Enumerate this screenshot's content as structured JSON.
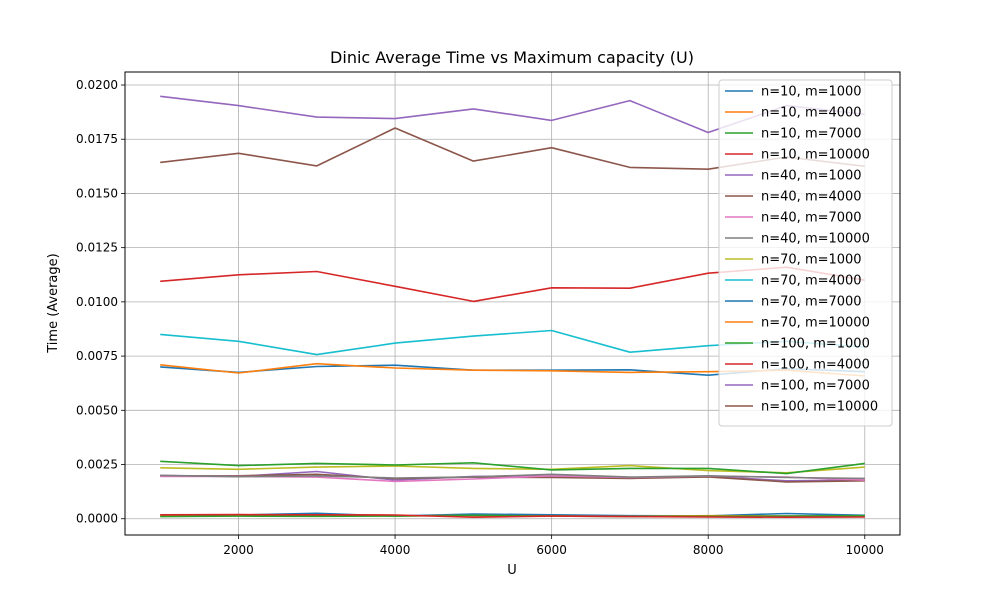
{
  "chart_data": {
    "type": "line",
    "title": "Dinic Average Time vs Maximum capacity (U)",
    "xlabel": "U",
    "ylabel": "Time (Average)",
    "xlim": [
      550,
      10450
    ],
    "ylim": [
      -0.00075,
      0.0206
    ],
    "xticks": [
      2000,
      4000,
      6000,
      8000,
      10000
    ],
    "xtick_labels": [
      "2000",
      "4000",
      "6000",
      "8000",
      "10000"
    ],
    "yticks": [
      0.0,
      0.0025,
      0.005,
      0.0075,
      0.01,
      0.0125,
      0.015,
      0.0175,
      0.02
    ],
    "ytick_labels": [
      "0.0000",
      "0.0025",
      "0.0050",
      "0.0075",
      "0.0100",
      "0.0125",
      "0.0150",
      "0.0175",
      "0.0200"
    ],
    "grid": true,
    "legend_position": "top-right",
    "x": [
      1000,
      2000,
      3000,
      4000,
      5000,
      6000,
      7000,
      8000,
      9000,
      10000
    ],
    "series": [
      {
        "name": "n=10, m=1000",
        "color": "#1f77b4",
        "values": [
          0.00015,
          0.00017,
          0.00025,
          0.00012,
          0.00022,
          0.00018,
          0.00014,
          0.00013,
          0.00024,
          0.00016
        ]
      },
      {
        "name": "n=10, m=4000",
        "color": "#ff7f0e",
        "values": [
          0.00012,
          0.00014,
          0.00016,
          0.00013,
          0.00015,
          0.00012,
          0.00011,
          0.00014,
          0.00012,
          0.00013
        ]
      },
      {
        "name": "n=10, m=7000",
        "color": "#2ca02c",
        "values": [
          0.0001,
          0.00012,
          0.00011,
          0.00012,
          0.00016,
          0.00012,
          0.0001,
          0.00011,
          0.00012,
          0.00014
        ]
      },
      {
        "name": "n=10, m=10000",
        "color": "#d62728",
        "values": [
          0.00018,
          0.00019,
          0.00018,
          0.00017,
          7e-05,
          0.00012,
          0.0001,
          8e-05,
          7e-05,
          8e-05
        ]
      },
      {
        "name": "n=40, m=1000",
        "color": "#9467bd",
        "values": [
          0.002,
          0.00195,
          0.00218,
          0.00178,
          0.00195,
          0.00197,
          0.00188,
          0.00195,
          0.00175,
          0.00178
        ]
      },
      {
        "name": "n=40, m=4000",
        "color": "#8c564b",
        "values": [
          0.00196,
          0.00198,
          0.00205,
          0.00185,
          0.00192,
          0.0019,
          0.00186,
          0.00193,
          0.0017,
          0.00175
        ]
      },
      {
        "name": "n=40, m=7000",
        "color": "#e377c2",
        "values": [
          0.00195,
          0.00195,
          0.00192,
          0.00172,
          0.00183,
          0.00198,
          0.0019,
          0.00197,
          0.00192,
          0.00178
        ]
      },
      {
        "name": "n=40, m=10000",
        "color": "#7f7f7f",
        "values": [
          0.002,
          0.00194,
          0.00198,
          0.00188,
          0.00193,
          0.00205,
          0.00192,
          0.00198,
          0.0019,
          0.00186
        ]
      },
      {
        "name": "n=70, m=1000",
        "color": "#bcbd22",
        "values": [
          0.00235,
          0.00228,
          0.00238,
          0.00243,
          0.00232,
          0.00228,
          0.00245,
          0.00222,
          0.00212,
          0.00238
        ]
      },
      {
        "name": "n=70, m=4000",
        "color": "#17becf",
        "values": [
          0.0085,
          0.00818,
          0.00757,
          0.0081,
          0.00842,
          0.00868,
          0.00768,
          0.00798,
          0.00818,
          0.00792
        ]
      },
      {
        "name": "n=70, m=7000",
        "color": "#1f77b4",
        "values": [
          0.007,
          0.00675,
          0.00702,
          0.00708,
          0.00685,
          0.00685,
          0.00687,
          0.00662,
          0.00692,
          0.00678
        ]
      },
      {
        "name": "n=70, m=10000",
        "color": "#ff7f0e",
        "values": [
          0.0071,
          0.00672,
          0.00715,
          0.00695,
          0.00685,
          0.00682,
          0.00675,
          0.00678,
          0.00685,
          0.00658
        ]
      },
      {
        "name": "n=100, m=1000",
        "color": "#2ca02c",
        "values": [
          0.00265,
          0.00245,
          0.00255,
          0.00248,
          0.00258,
          0.00225,
          0.00232,
          0.00232,
          0.00208,
          0.00255
        ]
      },
      {
        "name": "n=100, m=4000",
        "color": "#d62728",
        "values": [
          0.01095,
          0.01125,
          0.0114,
          0.01072,
          0.01002,
          0.01065,
          0.01063,
          0.01132,
          0.0116,
          0.011
        ]
      },
      {
        "name": "n=100, m=7000",
        "color": "#9467bd",
        "values": [
          0.01948,
          0.01905,
          0.01852,
          0.01845,
          0.0189,
          0.01837,
          0.01928,
          0.01781,
          0.01905,
          0.01865
        ]
      },
      {
        "name": "n=100, m=10000",
        "color": "#8c564b",
        "values": [
          0.01643,
          0.01685,
          0.01627,
          0.01802,
          0.01649,
          0.01711,
          0.0162,
          0.01612,
          0.01668,
          0.01625
        ]
      }
    ]
  }
}
